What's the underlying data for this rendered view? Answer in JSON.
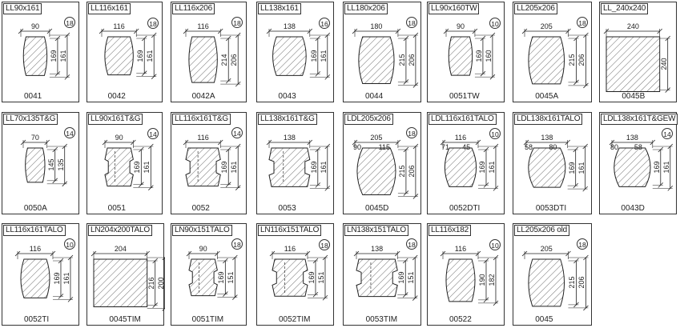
{
  "profiles": [
    {
      "title": "LL90x161",
      "code": "0041",
      "badge": "18",
      "width": "90",
      "height": "161",
      "height2": "169",
      "shape": "round"
    },
    {
      "title": "LL116x161",
      "code": "0042",
      "badge": "18",
      "width": "116",
      "height": "161",
      "height2": "169",
      "shape": "round"
    },
    {
      "title": "LL116x206",
      "code": "0042A",
      "badge": "18",
      "width": "116",
      "height": "206",
      "height2": "214",
      "shape": "round"
    },
    {
      "title": "LL138x161",
      "code": "0043",
      "badge": "16",
      "width": "138",
      "height": "161",
      "height2": "169",
      "shape": "round"
    },
    {
      "title": "LL180x206",
      "code": "0044",
      "badge": "18",
      "width": "180",
      "height": "206",
      "height2": "215",
      "shape": "round"
    },
    {
      "title": "LL90x160TW",
      "code": "0051TW",
      "badge": "10",
      "width": "90",
      "height": "160",
      "height2": "169",
      "shape": "round"
    },
    {
      "title": "LL205x206",
      "code": "0045A",
      "badge": "18",
      "width": "205",
      "height": "206",
      "height2": "215",
      "shape": "round"
    },
    {
      "title": "LL_240x240",
      "code": "0045B",
      "badge": "",
      "width": "240",
      "height": "240",
      "height2": "",
      "shape": "square"
    },
    {
      "title": "LL70x135T&G",
      "code": "0050A",
      "badge": "14",
      "width": "70",
      "height": "135",
      "height2": "145",
      "shape": "round"
    },
    {
      "title": "LL90x161T&G",
      "code": "0051",
      "badge": "14",
      "width": "90",
      "height": "161",
      "height2": "169",
      "shape": "tg"
    },
    {
      "title": "LL116x161T&G",
      "code": "0052",
      "badge": "14",
      "width": "116",
      "height": "161",
      "height2": "169",
      "shape": "tg"
    },
    {
      "title": "LL138x161T&G",
      "code": "0053",
      "badge": "",
      "width": "138",
      "height": "161",
      "height2": "169",
      "shape": "tg"
    },
    {
      "title": "LDL205x206",
      "code": "0045D",
      "badge": "18",
      "width": "205",
      "height": "206",
      "height2": "215",
      "shape": "dround",
      "sub1": "90",
      "sub2": "115"
    },
    {
      "title": "LDL116x161TALO",
      "code": "0052DTI",
      "badge": "10",
      "width": "116",
      "height": "161",
      "height2": "169",
      "shape": "dround",
      "sub1": "71",
      "sub2": "45"
    },
    {
      "title": "LDL138x161TALO",
      "code": "0053DTI",
      "badge": "",
      "width": "138",
      "height": "161",
      "height2": "169",
      "shape": "dround",
      "sub1": "58",
      "sub2": "80"
    },
    {
      "title": "LDL138x161T&GEW",
      "code": "0043D",
      "badge": "14",
      "width": "138",
      "height": "161",
      "height2": "169",
      "shape": "dround",
      "sub1": "80",
      "sub2": "58"
    },
    {
      "title": "LL116x161TALO",
      "code": "0052TI",
      "badge": "10",
      "width": "116",
      "height": "161",
      "height2": "169",
      "shape": "round"
    },
    {
      "title": "LN204x200TALO",
      "code": "0045TIM",
      "badge": "",
      "width": "204",
      "height": "200",
      "height2": "216",
      "shape": "square"
    },
    {
      "title": "LN90x151TALO",
      "code": "0051TIM",
      "badge": "18",
      "width": "90",
      "height": "151",
      "height2": "169",
      "shape": "tg"
    },
    {
      "title": "LN116x151TALO",
      "code": "0052TIM",
      "badge": "18",
      "width": "116",
      "height": "151",
      "height2": "169",
      "shape": "tg"
    },
    {
      "title": "LN138x151TALO",
      "code": "0053TIM",
      "badge": "18",
      "width": "138",
      "height": "151",
      "height2": "169",
      "shape": "tg"
    },
    {
      "title": "LL116x182",
      "code": "00522",
      "badge": "10",
      "width": "116",
      "height": "182",
      "height2": "190",
      "shape": "round"
    },
    {
      "title": "LL205x206 old",
      "code": "0045",
      "badge": "18",
      "width": "205",
      "height": "206",
      "height2": "215",
      "shape": "round"
    }
  ]
}
